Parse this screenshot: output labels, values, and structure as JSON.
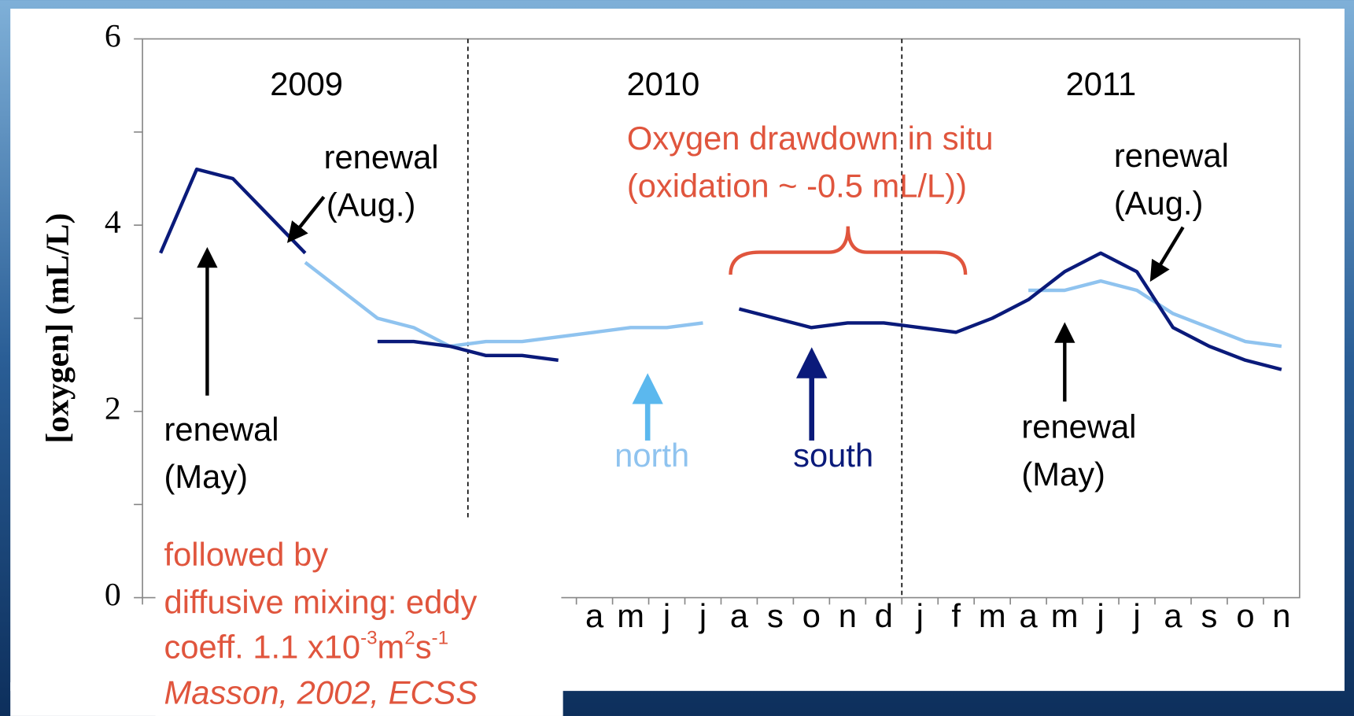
{
  "chart_data": {
    "type": "line",
    "ylabel": "[oxygen]  (mL/L)",
    "categories": [
      null,
      null,
      null,
      null,
      null,
      null,
      null,
      null,
      null,
      null,
      null,
      null,
      "a",
      "m",
      "j",
      "j",
      "a",
      "s",
      "o",
      "n",
      "d",
      "j",
      "f",
      "m",
      "a",
      "m",
      "j",
      "j",
      "a",
      "s",
      "o",
      "n"
    ],
    "series": [
      {
        "name": "north",
        "color": "#8fc3ef",
        "values": [
          null,
          null,
          null,
          null,
          3.6,
          3.3,
          3.0,
          2.9,
          2.7,
          2.75,
          2.75,
          2.8,
          2.85,
          2.9,
          2.9,
          2.95,
          null,
          null,
          null,
          null,
          null,
          null,
          null,
          null,
          3.3,
          3.3,
          3.4,
          3.3,
          3.05,
          2.9,
          2.75,
          2.7
        ]
      },
      {
        "name": "south",
        "color": "#0a1a7a",
        "values": [
          3.7,
          4.6,
          4.5,
          4.1,
          3.7,
          null,
          2.75,
          2.75,
          2.7,
          2.6,
          2.6,
          2.55,
          null,
          null,
          null,
          null,
          3.1,
          3.0,
          2.9,
          2.95,
          2.95,
          2.9,
          2.85,
          3.0,
          3.2,
          3.5,
          3.7,
          3.5,
          2.9,
          2.7,
          2.55,
          2.45
        ]
      }
    ],
    "ylim": [
      0,
      6
    ],
    "yticks": [
      0,
      2,
      4,
      6
    ],
    "yminor": [
      1,
      3,
      5
    ],
    "year_labels": [
      "2009",
      "2010",
      "2011"
    ],
    "annotations": {
      "renewal_aug_1": [
        "renewal",
        "(Aug.)"
      ],
      "renewal_may_1": [
        "renewal",
        "(May)"
      ],
      "renewal_aug_2": [
        "renewal",
        "(Aug.)"
      ],
      "renewal_may_2": [
        "renewal",
        "(May)"
      ],
      "drawdown": [
        "Oxygen drawdown in situ",
        "(oxidation  ~ -0.5 mL/L))"
      ],
      "mixing": [
        "followed by",
        "diffusive mixing:  eddy"
      ],
      "coeff": [
        "coeff. 1.1 x10",
        "-3",
        "m",
        "2",
        "s",
        "-1"
      ],
      "citation": "Masson, 2002, ECSS"
    }
  }
}
